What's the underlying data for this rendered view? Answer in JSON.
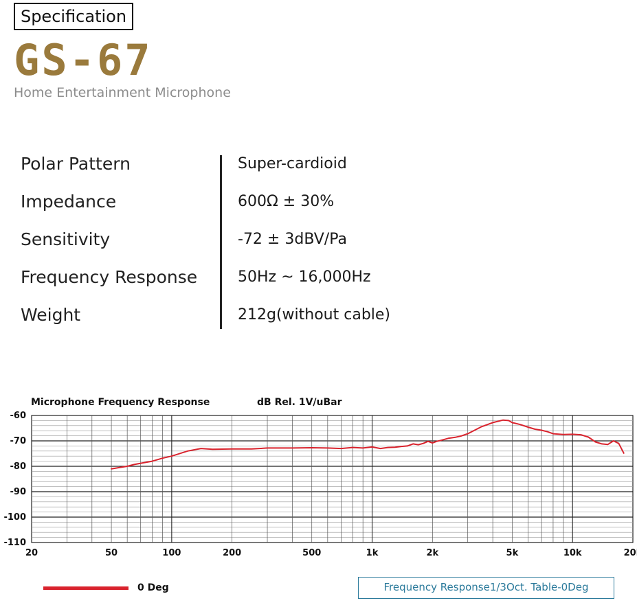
{
  "header": {
    "badge": "Specification",
    "model": "GS-67",
    "subtitle": "Home Entertainment Microphone"
  },
  "specs": [
    {
      "label": "Polar Pattern",
      "value": "Super-cardioid"
    },
    {
      "label": "Impedance",
      "value": "600Ω ± 30%"
    },
    {
      "label": "Sensitivity",
      "value": "-72 ± 3dBV/Pa"
    },
    {
      "label": "Frequency Response",
      "value": "50Hz ~ 16,000Hz"
    },
    {
      "label": "Weight",
      "value": "212g(without cable)"
    }
  ],
  "chart_data": {
    "type": "line",
    "title": "Microphone Frequency Response",
    "ylabel": "dB Rel. 1V/uBar",
    "xscale": "log",
    "xlim": [
      20,
      20000
    ],
    "ylim": [
      -110,
      -60
    ],
    "x_ticks": [
      20,
      50,
      100,
      200,
      500,
      1000,
      2000,
      5000,
      10000,
      20000
    ],
    "x_tick_labels": [
      "20",
      "50",
      "100",
      "200",
      "500",
      "1k",
      "2k",
      "5k",
      "10k",
      "20k"
    ],
    "y_ticks": [
      -60,
      -70,
      -80,
      -90,
      -100,
      -110
    ],
    "y_tick_labels": [
      "-60",
      "-70",
      "-80",
      "-90",
      "-100",
      "-110"
    ],
    "grid": true,
    "series": [
      {
        "name": "0 Deg",
        "color": "#d9232d",
        "x": [
          50,
          55,
          60,
          65,
          70,
          80,
          90,
          100,
          120,
          140,
          160,
          200,
          250,
          300,
          400,
          500,
          600,
          700,
          800,
          900,
          1000,
          1100,
          1200,
          1300,
          1400,
          1500,
          1600,
          1700,
          1800,
          1900,
          2000,
          2100,
          2200,
          2400,
          2600,
          2800,
          3000,
          3500,
          4000,
          4500,
          4800,
          5000,
          5500,
          6000,
          6500,
          7000,
          7500,
          8000,
          9000,
          10000,
          11000,
          12000,
          13000,
          14000,
          15000,
          16000,
          17000,
          18000
        ],
        "y": [
          -81,
          -80.5,
          -80,
          -79.3,
          -78.8,
          -78,
          -76.8,
          -76,
          -74,
          -73,
          -73.3,
          -73.2,
          -73.2,
          -72.8,
          -72.8,
          -72.7,
          -72.8,
          -73,
          -72.6,
          -72.8,
          -72.4,
          -73,
          -72.6,
          -72.5,
          -72.2,
          -72,
          -71.2,
          -71.5,
          -71,
          -70.2,
          -70.8,
          -70.2,
          -69.8,
          -69,
          -68.6,
          -68,
          -67.2,
          -64.5,
          -62.8,
          -61.8,
          -62,
          -62.8,
          -63.6,
          -64.6,
          -65.4,
          -65.8,
          -66.4,
          -67.2,
          -67.5,
          -67.4,
          -67.6,
          -68.5,
          -70.4,
          -71.2,
          -71.4,
          -70,
          -71,
          -74.8
        ]
      }
    ],
    "legend": "bottom-left",
    "note": "Frequency Response1/3Oct. Table-0Deg"
  }
}
